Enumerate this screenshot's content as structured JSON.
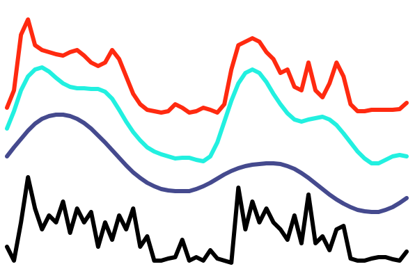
{
  "chart_data": {
    "type": "line",
    "ylim": [
      0,
      400
    ],
    "series": [
      {
        "color": "#ff2a10",
        "values": [
          245,
          270,
          350,
          372,
          335,
          328,
          325,
          322,
          320,
          325,
          328,
          320,
          310,
          305,
          310,
          328,
          315,
          290,
          265,
          250,
          242,
          240,
          238,
          240,
          250,
          245,
          238,
          240,
          245,
          242,
          238,
          250,
          300,
          335,
          340,
          345,
          340,
          325,
          315,
          295,
          300,
          275,
          270,
          310,
          270,
          260,
          280,
          310,
          290,
          250,
          240,
          240,
          242,
          242,
          242,
          242,
          243,
          252
        ]
      },
      {
        "color": "#22f0e0",
        "values": [
          215,
          240,
          270,
          290,
          300,
          303,
          297,
          288,
          280,
          275,
          273,
          273,
          272,
          272,
          268,
          258,
          242,
          225,
          210,
          198,
          188,
          182,
          178,
          175,
          172,
          173,
          173,
          170,
          168,
          175,
          195,
          225,
          255,
          280,
          295,
          300,
          295,
          282,
          265,
          250,
          237,
          228,
          225,
          228,
          230,
          232,
          228,
          220,
          208,
          195,
          182,
          172,
          165,
          165,
          170,
          175,
          177,
          175
        ]
      },
      {
        "color": "#454a8e",
        "values": [
          175,
          188,
          200,
          212,
          222,
          229,
          233,
          235,
          235,
          233,
          229,
          223,
          215,
          205,
          195,
          184,
          173,
          162,
          152,
          144,
          137,
          132,
          128,
          126,
          125,
          125,
          125,
          128,
          132,
          137,
          143,
          149,
          154,
          158,
          161,
          163,
          164,
          165,
          165,
          164,
          161,
          157,
          151,
          144,
          136,
          128,
          120,
          113,
          107,
          102,
          98,
          96,
          95,
          95,
          98,
          102,
          108,
          115
        ]
      },
      {
        "color": "#000000",
        "values": [
          45,
          25,
          80,
          145,
          100,
          70,
          90,
          80,
          110,
          65,
          100,
          80,
          95,
          45,
          80,
          55,
          90,
          70,
          100,
          45,
          60,
          25,
          25,
          28,
          30,
          55,
          25,
          30,
          25,
          40,
          28,
          25,
          22,
          130,
          70,
          110,
          80,
          100,
          80,
          70,
          55,
          90,
          50,
          120,
          50,
          60,
          40,
          70,
          75,
          28,
          25,
          25,
          28,
          30,
          30,
          27,
          25,
          38
        ]
      }
    ]
  }
}
